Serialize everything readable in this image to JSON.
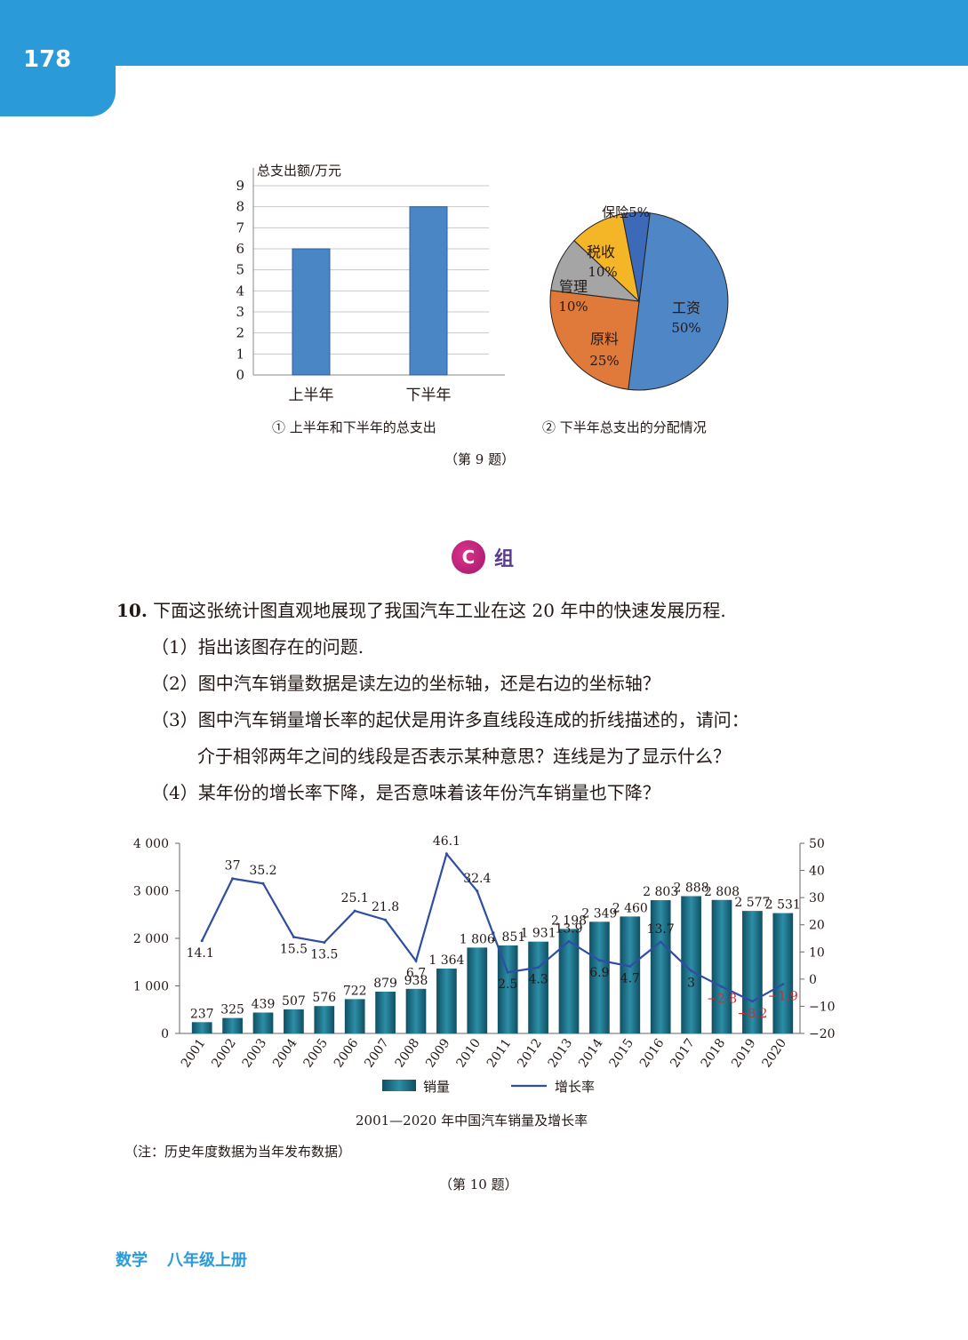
{
  "page": {
    "number": "178"
  },
  "figure9": {
    "bar": {
      "ylabel": "总支出额/万元",
      "yticks": [
        "0",
        "1",
        "2",
        "3",
        "4",
        "5",
        "6",
        "7",
        "8",
        "9"
      ],
      "caption": "① 上半年和下半年的总支出"
    },
    "pie": {
      "caption": "② 下半年总支出的分配情况",
      "labels": [
        {
          "name": "工资",
          "pct": "50%"
        },
        {
          "name": "原料",
          "pct": "25%"
        },
        {
          "name": "管理",
          "pct": "10%"
        },
        {
          "name": "税收",
          "pct": "10%"
        },
        {
          "name": "保险",
          "pct": "5%"
        }
      ]
    },
    "label": "（第 9 题）"
  },
  "group": {
    "badge": "C",
    "label": "组"
  },
  "question10": {
    "number": "10.",
    "stem": "下面这张统计图直观地展现了我国汽车工业在这 20 年中的快速发展历程.",
    "parts": [
      "（1）指出该图存在的问题.",
      "（2）图中汽车销量数据是读左边的坐标轴，还是右边的坐标轴？",
      "（3）图中汽车销量增长率的起伏是用许多直线段连成的折线描述的，请问：",
      "介于相邻两年之间的线段是否表示某种意思？连线是为了显示什么？",
      "（4）某年份的增长率下降，是否意味着该年份汽车销量也下降？"
    ]
  },
  "figure10": {
    "left_ticks": [
      "0",
      "1 000",
      "2 000",
      "3 000",
      "4 000"
    ],
    "right_ticks": [
      "−20",
      "−10",
      "0",
      "10",
      "20",
      "30",
      "40",
      "50"
    ],
    "legend_bar": "销量",
    "legend_line": "增长率",
    "caption": "2001—2020 年中国汽车销量及增长率",
    "note": "（注：历史年度数据为当年发布数据）",
    "label": "（第 10 题）"
  },
  "chart_data": [
    {
      "type": "bar",
      "ylabel": "总支出额/万元",
      "categories": [
        "上半年",
        "下半年"
      ],
      "values": [
        6,
        8
      ],
      "ylim": [
        0,
        9
      ],
      "grid": true,
      "color": "#4a86c6"
    },
    {
      "type": "pie",
      "categories": [
        "工资",
        "原料",
        "管理",
        "税收",
        "保险"
      ],
      "values": [
        50,
        25,
        10,
        10,
        5
      ],
      "colors": [
        "#4f86c6",
        "#e07a3a",
        "#a5a5a5",
        "#f4b526",
        "#3c6ab8"
      ]
    },
    {
      "type": "bar",
      "categories": [
        "2001",
        "2002",
        "2003",
        "2004",
        "2005",
        "2006",
        "2007",
        "2008",
        "2009",
        "2010",
        "2011",
        "2012",
        "2013",
        "2014",
        "2015",
        "2016",
        "2017",
        "2018",
        "2019",
        "2020"
      ],
      "series": [
        {
          "name": "销量",
          "type": "bar",
          "axis": "left",
          "values": [
            237,
            325,
            439,
            507,
            576,
            722,
            879,
            938,
            1364,
            1806,
            1851,
            1931,
            2198,
            2349,
            2460,
            2803,
            2888,
            2808,
            2577,
            2531
          ],
          "labels": [
            "237",
            "325",
            "439",
            "507",
            "576",
            "722",
            "879",
            "938",
            "1 364",
            "1 806",
            "1 851",
            "1 931",
            "2 198",
            "2 349",
            "2 460",
            "2 803",
            "2 888",
            "2 808",
            "2 577",
            "2 531"
          ]
        },
        {
          "name": "增长率",
          "type": "line",
          "axis": "right",
          "values": [
            14.1,
            37,
            35.2,
            15.5,
            13.5,
            25.1,
            21.8,
            6.7,
            46.1,
            32.4,
            2.5,
            4.3,
            13.9,
            6.9,
            4.7,
            13.7,
            3,
            -2.8,
            -8.2,
            -1.9
          ],
          "labels": [
            "14.1",
            "37",
            "35.2",
            "15.5",
            "13.5",
            "25.1",
            "21.8",
            "6.7",
            "46.1",
            "32.4",
            "2.5",
            "4.3",
            "13.9",
            "6.9",
            "4.7",
            "13.7",
            "3",
            "−2.8",
            "−8.2",
            "−1.9"
          ]
        }
      ],
      "ylim_left": [
        0,
        4000
      ],
      "ylim_right": [
        -20,
        50
      ],
      "legend": "bottom",
      "title": "2001—2020 年中国汽车销量及增长率"
    }
  ]
}
